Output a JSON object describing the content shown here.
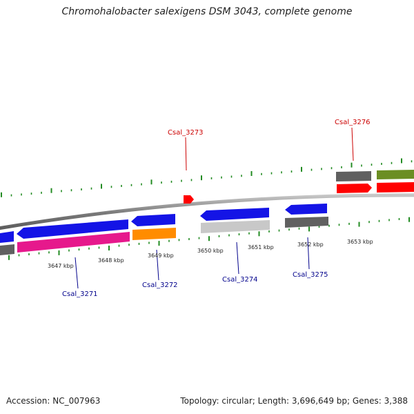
{
  "title": "Chromohalobacter salexigens DSM 3043, complete genome",
  "footer": {
    "accession": "Accession: NC_007963",
    "topology": "Topology: circular; Length: 3,696,649 bp; Genes: 3,388"
  },
  "colors": {
    "backbone": "#8a8a8a",
    "tick": "#228b22",
    "label_forward": "#cc0000",
    "label_reverse": "#00008b",
    "blue": "#1414e6",
    "magenta": "#e6198c",
    "orange": "#ff8c00",
    "gray": "#606060",
    "lightgray": "#c8c8c8",
    "red": "#ff0000",
    "olive": "#6b8e23"
  },
  "scale_labels": [
    "3647 kbp",
    "3648 kbp",
    "3649 kbp",
    "3650 kbp",
    "3651 kbp",
    "3652 kbp",
    "3653 kbp"
  ],
  "gene_labels": {
    "forward": [
      "Csal_3273",
      "Csal_3276"
    ],
    "reverse": [
      "Csal_3271",
      "Csal_3272",
      "Csal_3274",
      "Csal_3275"
    ]
  }
}
